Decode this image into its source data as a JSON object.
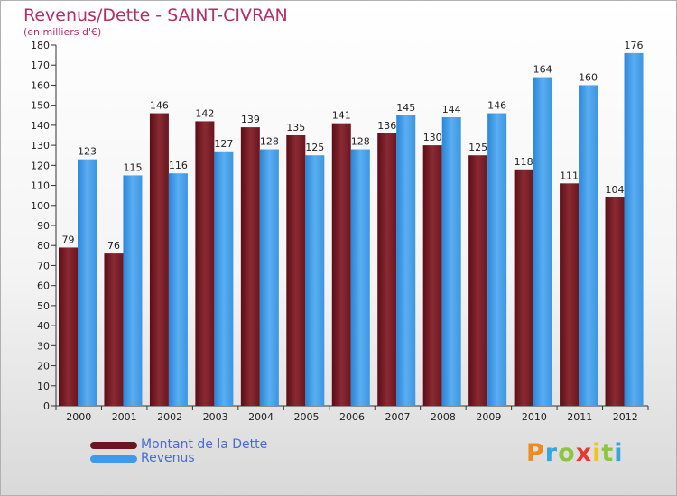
{
  "header": {
    "title": "Revenus/Dette - SAINT-CIVRAN",
    "subtitle": "(en milliers d'€)"
  },
  "colors": {
    "dette": "#7a1f2b",
    "revenus": "#3d9be9",
    "title": "#b0306a",
    "legend_text": "#4a6bd6"
  },
  "legend": {
    "dette_label": "Montant de la Dette",
    "revenus_label": "Revenus"
  },
  "logo": {
    "text": "Proxiti"
  },
  "chart_data": {
    "type": "bar",
    "title": "Revenus/Dette - SAINT-CIVRAN",
    "subtitle": "(en milliers d'€)",
    "xlabel": "",
    "ylabel": "",
    "ylim": [
      0,
      180
    ],
    "ytick_step": 10,
    "grid": false,
    "legend_placement": "bottom-left",
    "categories": [
      "2000",
      "2001",
      "2002",
      "2003",
      "2004",
      "2005",
      "2006",
      "2007",
      "2008",
      "2009",
      "2010",
      "2011",
      "2012"
    ],
    "series": [
      {
        "name": "Montant de la Dette",
        "values": [
          79,
          76,
          146,
          142,
          139,
          135,
          141,
          136,
          130,
          125,
          118,
          111,
          104
        ]
      },
      {
        "name": "Revenus",
        "values": [
          123,
          115,
          116,
          127,
          128,
          125,
          128,
          145,
          144,
          146,
          164,
          160,
          176
        ]
      }
    ]
  }
}
